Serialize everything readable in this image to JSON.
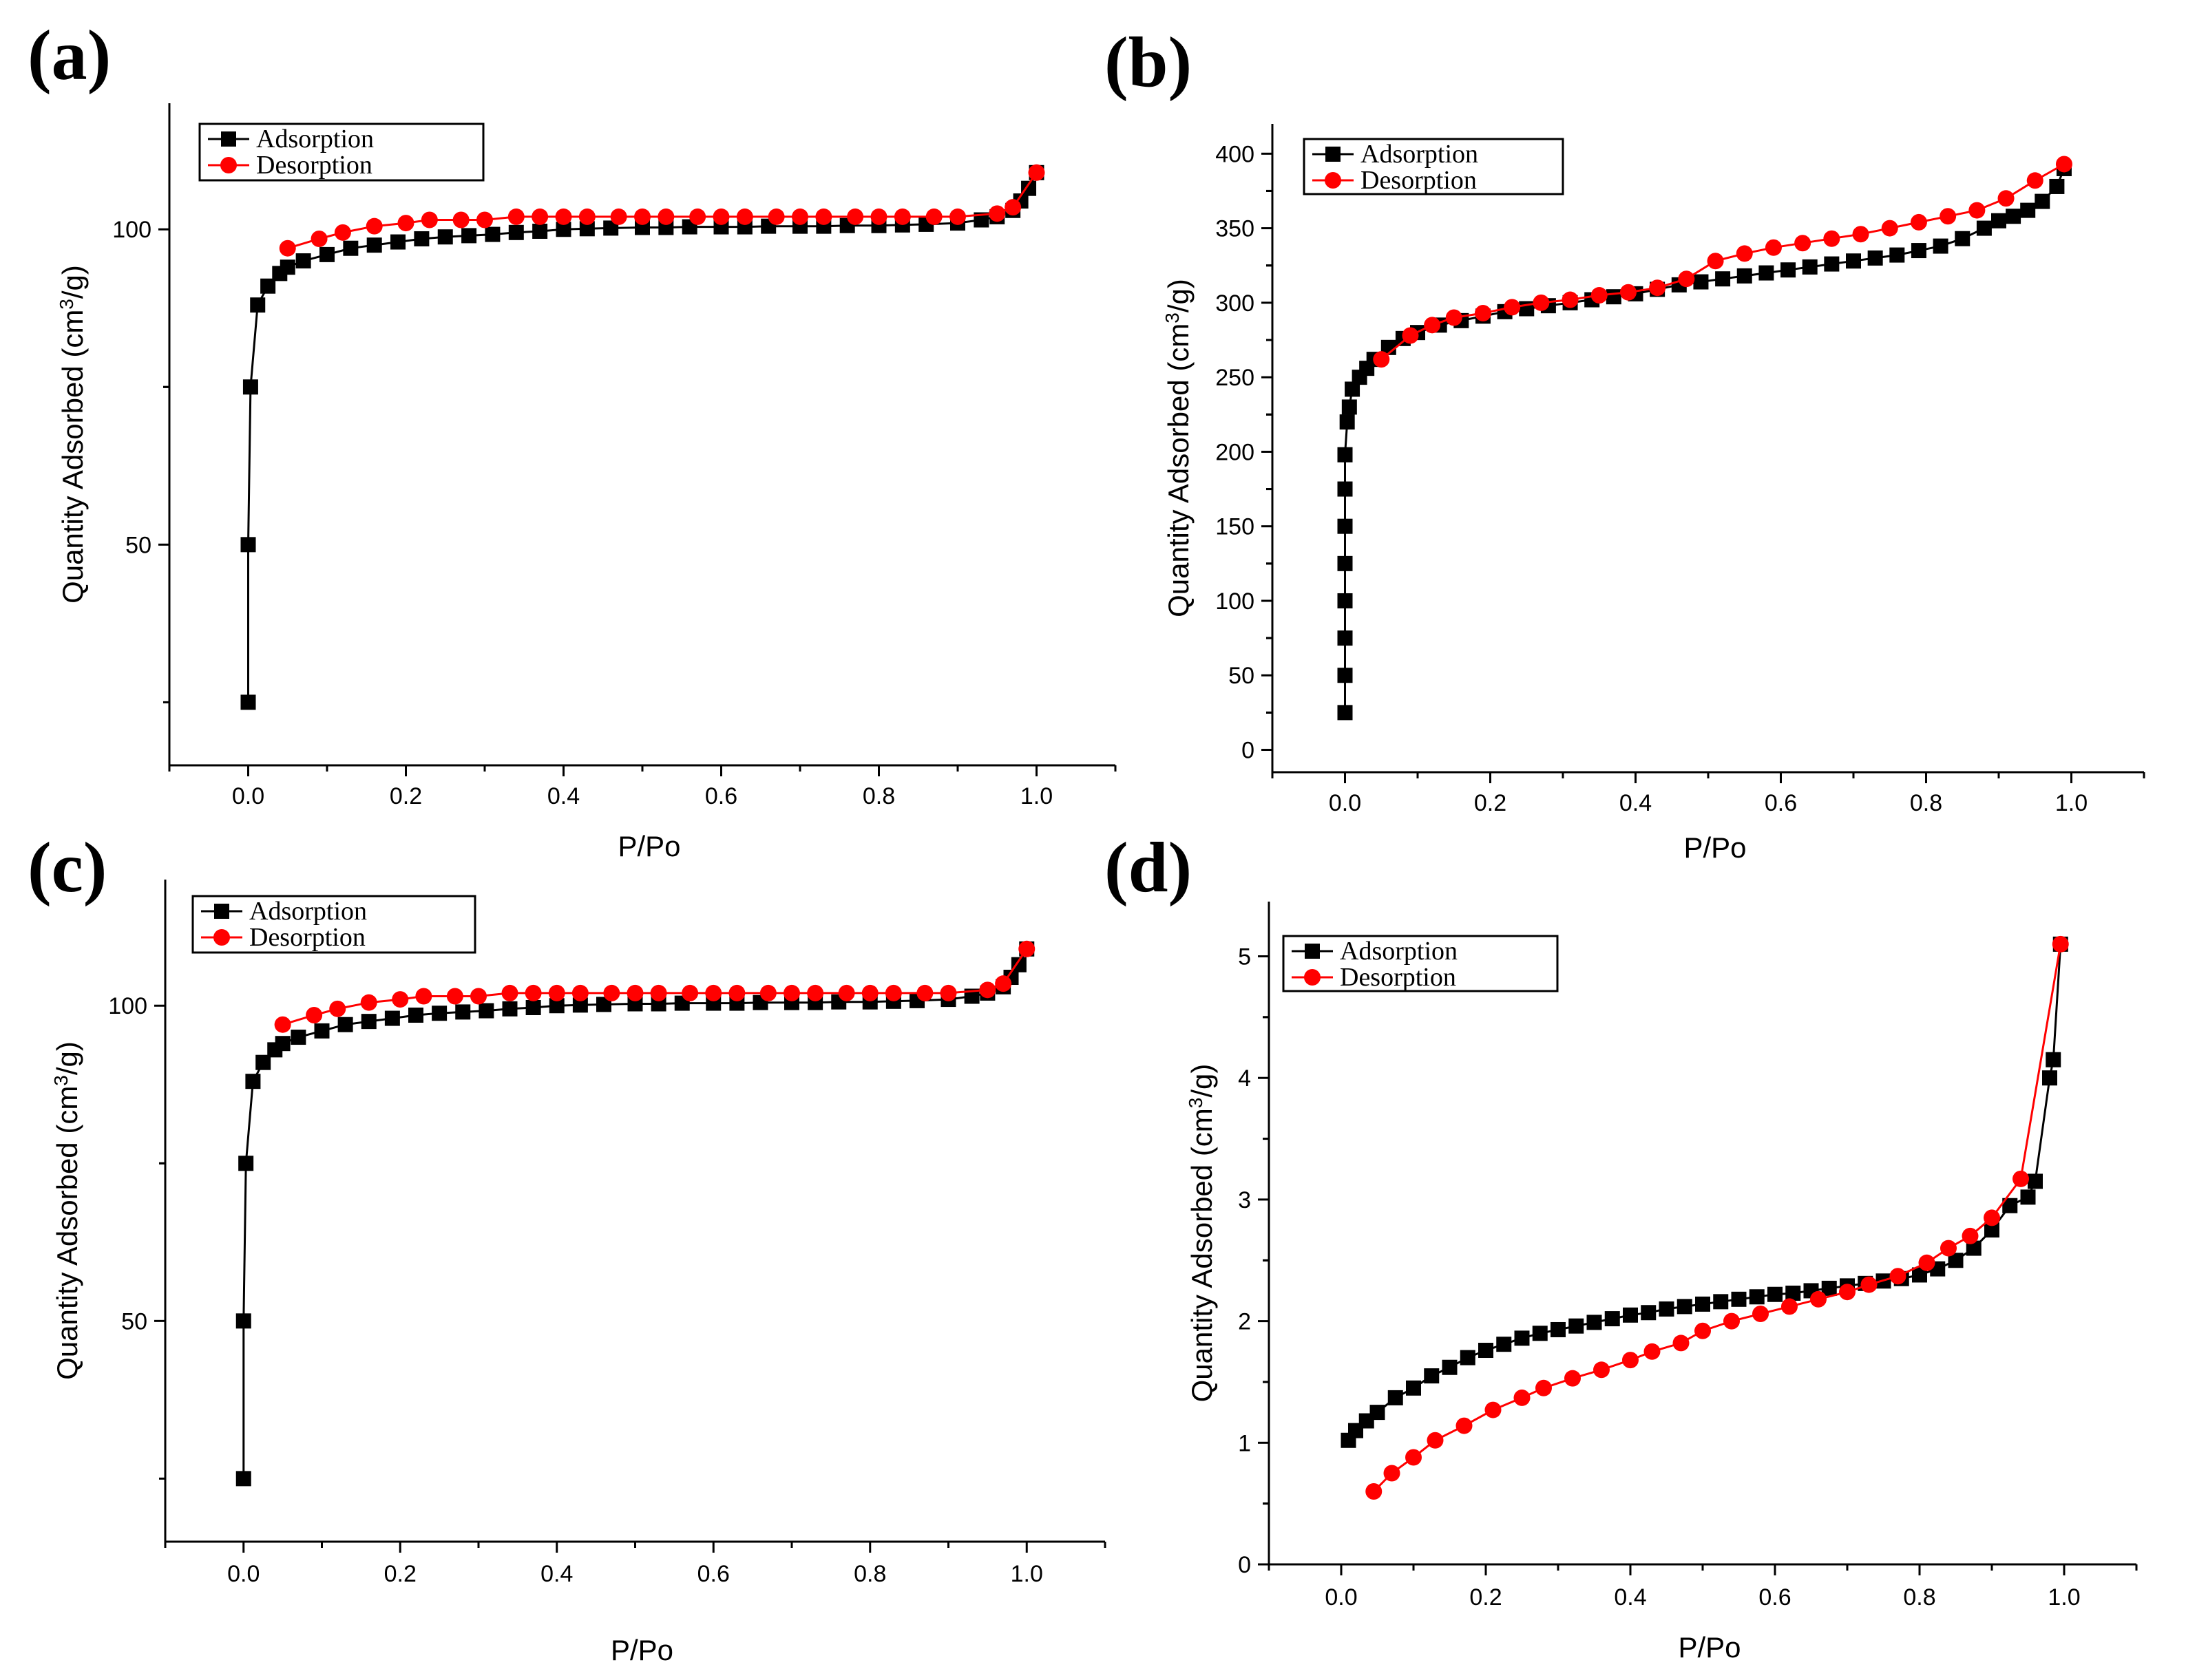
{
  "colors": {
    "adsorption": "#000000",
    "desorption": "#ff0000"
  },
  "chart_data": [
    {
      "type": "line",
      "panel_label": "(a)",
      "xlabel": "P/Po",
      "ylabel": "Quantity Adsorbed (cm3/g)",
      "ylabel_main": "Quantity Adsorbed (cm",
      "ylabel_sup": "3",
      "ylabel_end": "/g)",
      "xlim": [
        -0.1,
        1.1
      ],
      "ylim": [
        15,
        120
      ],
      "xticks": [
        0.0,
        0.2,
        0.4,
        0.6,
        0.8,
        1.0
      ],
      "xtick_labels": [
        "0.0",
        "0.2",
        "0.4",
        "0.6",
        "0.8",
        "1.0"
      ],
      "yticks": [
        50,
        100
      ],
      "ytick_labels": [
        "50",
        "100"
      ],
      "legend": {
        "position": "top-left",
        "entries": [
          "Adsorption",
          "Desorption"
        ]
      },
      "series": [
        {
          "name": "Adsorption",
          "marker": "square",
          "x": [
            0.0,
            0.0,
            0.003,
            0.012,
            0.025,
            0.04,
            0.05,
            0.07,
            0.1,
            0.13,
            0.16,
            0.19,
            0.22,
            0.25,
            0.28,
            0.31,
            0.34,
            0.37,
            0.4,
            0.43,
            0.46,
            0.5,
            0.53,
            0.56,
            0.6,
            0.63,
            0.66,
            0.7,
            0.73,
            0.76,
            0.8,
            0.83,
            0.86,
            0.9,
            0.93,
            0.95,
            0.97,
            0.98,
            0.99,
            1.0
          ],
          "y": [
            25,
            50,
            75,
            88,
            91,
            93,
            94,
            95,
            96,
            97,
            97.5,
            98,
            98.5,
            98.8,
            99,
            99.2,
            99.5,
            99.7,
            100,
            100.1,
            100.2,
            100.3,
            100.3,
            100.4,
            100.4,
            100.4,
            100.5,
            100.5,
            100.5,
            100.6,
            100.6,
            100.7,
            100.8,
            101,
            101.5,
            102,
            103,
            104.5,
            106.5,
            109
          ]
        },
        {
          "name": "Desorption",
          "marker": "circle",
          "x": [
            1.0,
            0.97,
            0.95,
            0.9,
            0.87,
            0.83,
            0.8,
            0.77,
            0.73,
            0.7,
            0.67,
            0.63,
            0.6,
            0.57,
            0.53,
            0.5,
            0.47,
            0.43,
            0.4,
            0.37,
            0.34,
            0.3,
            0.27,
            0.23,
            0.2,
            0.16,
            0.12,
            0.09,
            0.05
          ],
          "y": [
            109,
            103.5,
            102.5,
            102,
            102,
            102,
            102,
            102,
            102,
            102,
            102,
            102,
            102,
            102,
            102,
            102,
            102,
            102,
            102,
            102,
            102,
            101.5,
            101.5,
            101.5,
            101,
            100.5,
            99.5,
            98.5,
            97
          ]
        }
      ]
    },
    {
      "type": "line",
      "panel_label": "(b)",
      "xlabel": "P/Po",
      "ylabel": "Quantity Adsorbed (cm3/g)",
      "ylabel_main": "Quantity Adsorbed (cm",
      "ylabel_sup": "3",
      "ylabel_end": "/g)",
      "xlim": [
        -0.1,
        1.1
      ],
      "ylim": [
        -15,
        420
      ],
      "xticks": [
        0.0,
        0.2,
        0.4,
        0.6,
        0.8,
        1.0
      ],
      "xtick_labels": [
        "0.0",
        "0.2",
        "0.4",
        "0.6",
        "0.8",
        "1.0"
      ],
      "yticks": [
        0,
        50,
        100,
        150,
        200,
        250,
        300,
        350,
        400
      ],
      "ytick_labels": [
        "0",
        "50",
        "100",
        "150",
        "200",
        "250",
        "300",
        "350",
        "400"
      ],
      "legend": {
        "position": "top-left",
        "entries": [
          "Adsorption",
          "Desorption"
        ]
      },
      "series": [
        {
          "name": "Adsorption",
          "marker": "square",
          "x": [
            0.0,
            0.0,
            0.0,
            0.0,
            0.0,
            0.0,
            0.0,
            0.0,
            0.003,
            0.006,
            0.01,
            0.02,
            0.03,
            0.04,
            0.06,
            0.08,
            0.1,
            0.13,
            0.16,
            0.19,
            0.22,
            0.25,
            0.28,
            0.31,
            0.34,
            0.37,
            0.4,
            0.43,
            0.46,
            0.49,
            0.52,
            0.55,
            0.58,
            0.61,
            0.64,
            0.67,
            0.7,
            0.73,
            0.76,
            0.79,
            0.82,
            0.85,
            0.88,
            0.9,
            0.92,
            0.94,
            0.96,
            0.98,
            0.99
          ],
          "y": [
            25,
            50,
            75,
            100,
            125,
            150,
            175,
            198,
            220,
            230,
            242,
            250,
            256,
            262,
            270,
            276,
            280,
            285,
            288,
            291,
            294,
            296,
            298,
            300,
            302,
            304,
            306,
            309,
            312,
            314,
            316,
            318,
            320,
            322,
            324,
            326,
            328,
            330,
            332,
            335,
            338,
            343,
            350,
            355,
            358,
            362,
            368,
            378,
            390
          ]
        },
        {
          "name": "Desorption",
          "marker": "circle",
          "x": [
            0.99,
            0.95,
            0.91,
            0.87,
            0.83,
            0.79,
            0.75,
            0.71,
            0.67,
            0.63,
            0.59,
            0.55,
            0.51,
            0.47,
            0.43,
            0.39,
            0.35,
            0.31,
            0.27,
            0.23,
            0.19,
            0.15,
            0.12,
            0.09,
            0.05
          ],
          "y": [
            393,
            382,
            370,
            362,
            358,
            354,
            350,
            346,
            343,
            340,
            337,
            333,
            328,
            316,
            310,
            307,
            305,
            302,
            300,
            297,
            293,
            290,
            285,
            278,
            262
          ]
        }
      ]
    },
    {
      "type": "line",
      "panel_label": "(c)",
      "xlabel": "P/Po",
      "ylabel": "Quantity Adsorbed (cm3/g)",
      "ylabel_main": "Quantity Adsorbed (cm",
      "ylabel_sup": "3",
      "ylabel_end": "/g)",
      "xlim": [
        -0.1,
        1.1
      ],
      "ylim": [
        15,
        120
      ],
      "xticks": [
        0.0,
        0.2,
        0.4,
        0.6,
        0.8,
        1.0
      ],
      "xtick_labels": [
        "0.0",
        "0.2",
        "0.4",
        "0.6",
        "0.8",
        "1.0"
      ],
      "yticks": [
        50,
        100
      ],
      "ytick_labels": [
        "50",
        "100"
      ],
      "legend": {
        "position": "top-left",
        "entries": [
          "Adsorption",
          "Desorption"
        ]
      },
      "series": [
        {
          "name": "Adsorption",
          "marker": "square",
          "x": [
            0.0,
            0.0,
            0.003,
            0.012,
            0.025,
            0.04,
            0.05,
            0.07,
            0.1,
            0.13,
            0.16,
            0.19,
            0.22,
            0.25,
            0.28,
            0.31,
            0.34,
            0.37,
            0.4,
            0.43,
            0.46,
            0.5,
            0.53,
            0.56,
            0.6,
            0.63,
            0.66,
            0.7,
            0.73,
            0.76,
            0.8,
            0.83,
            0.86,
            0.9,
            0.93,
            0.95,
            0.97,
            0.98,
            0.99,
            1.0
          ],
          "y": [
            25,
            50,
            75,
            88,
            91,
            93,
            94,
            95,
            96,
            97,
            97.5,
            98,
            98.5,
            98.8,
            99,
            99.2,
            99.5,
            99.7,
            100,
            100.1,
            100.2,
            100.3,
            100.3,
            100.4,
            100.4,
            100.4,
            100.5,
            100.5,
            100.5,
            100.6,
            100.6,
            100.7,
            100.8,
            101,
            101.5,
            102,
            103,
            104.5,
            106.5,
            109
          ]
        },
        {
          "name": "Desorption",
          "marker": "circle",
          "x": [
            1.0,
            0.97,
            0.95,
            0.9,
            0.87,
            0.83,
            0.8,
            0.77,
            0.73,
            0.7,
            0.67,
            0.63,
            0.6,
            0.57,
            0.53,
            0.5,
            0.47,
            0.43,
            0.4,
            0.37,
            0.34,
            0.3,
            0.27,
            0.23,
            0.2,
            0.16,
            0.12,
            0.09,
            0.05
          ],
          "y": [
            109,
            103.5,
            102.5,
            102,
            102,
            102,
            102,
            102,
            102,
            102,
            102,
            102,
            102,
            102,
            102,
            102,
            102,
            102,
            102,
            102,
            102,
            101.5,
            101.5,
            101.5,
            101,
            100.5,
            99.5,
            98.5,
            97
          ]
        }
      ]
    },
    {
      "type": "line",
      "panel_label": "(d)",
      "xlabel": "P/Po",
      "ylabel": "Quantity Adsorbed (cm3/g)",
      "ylabel_main": "Quantity Adsorbed (cm",
      "ylabel_sup": "3",
      "ylabel_end": "/g)",
      "xlim": [
        -0.1,
        1.1
      ],
      "ylim": [
        0,
        5.45
      ],
      "xticks": [
        0.0,
        0.2,
        0.4,
        0.6,
        0.8,
        1.0
      ],
      "xtick_labels": [
        "0.0",
        "0.2",
        "0.4",
        "0.6",
        "0.8",
        "1.0"
      ],
      "yticks": [
        0,
        1,
        2,
        3,
        4,
        5
      ],
      "ytick_labels": [
        "0",
        "1",
        "2",
        "3",
        "4",
        "5"
      ],
      "legend": {
        "position": "top-left",
        "entries": [
          "Adsorption",
          "Desorption"
        ]
      },
      "series": [
        {
          "name": "Adsorption",
          "marker": "square",
          "x": [
            0.01,
            0.02,
            0.035,
            0.05,
            0.075,
            0.1,
            0.125,
            0.15,
            0.175,
            0.2,
            0.225,
            0.25,
            0.275,
            0.3,
            0.325,
            0.35,
            0.375,
            0.4,
            0.425,
            0.45,
            0.475,
            0.5,
            0.525,
            0.55,
            0.575,
            0.6,
            0.625,
            0.65,
            0.675,
            0.7,
            0.725,
            0.75,
            0.775,
            0.8,
            0.825,
            0.85,
            0.875,
            0.9,
            0.925,
            0.95,
            0.96,
            0.98,
            0.985,
            0.995
          ],
          "y": [
            1.02,
            1.1,
            1.18,
            1.25,
            1.37,
            1.45,
            1.55,
            1.62,
            1.7,
            1.76,
            1.81,
            1.86,
            1.9,
            1.93,
            1.96,
            1.99,
            2.02,
            2.05,
            2.07,
            2.1,
            2.12,
            2.14,
            2.16,
            2.18,
            2.2,
            2.22,
            2.23,
            2.25,
            2.27,
            2.29,
            2.31,
            2.33,
            2.35,
            2.38,
            2.43,
            2.5,
            2.6,
            2.75,
            2.95,
            3.02,
            3.15,
            4.0,
            4.15,
            5.1
          ]
        },
        {
          "name": "Desorption",
          "marker": "circle",
          "x": [
            0.995,
            0.94,
            0.9,
            0.87,
            0.84,
            0.81,
            0.77,
            0.73,
            0.7,
            0.66,
            0.62,
            0.58,
            0.54,
            0.5,
            0.47,
            0.43,
            0.4,
            0.36,
            0.32,
            0.28,
            0.25,
            0.21,
            0.17,
            0.13,
            0.1,
            0.07,
            0.045
          ],
          "y": [
            5.1,
            3.17,
            2.85,
            2.7,
            2.6,
            2.48,
            2.37,
            2.3,
            2.24,
            2.18,
            2.12,
            2.06,
            2.0,
            1.92,
            1.82,
            1.75,
            1.68,
            1.6,
            1.53,
            1.45,
            1.37,
            1.27,
            1.14,
            1.02,
            0.88,
            0.75,
            0.6
          ]
        }
      ]
    }
  ]
}
